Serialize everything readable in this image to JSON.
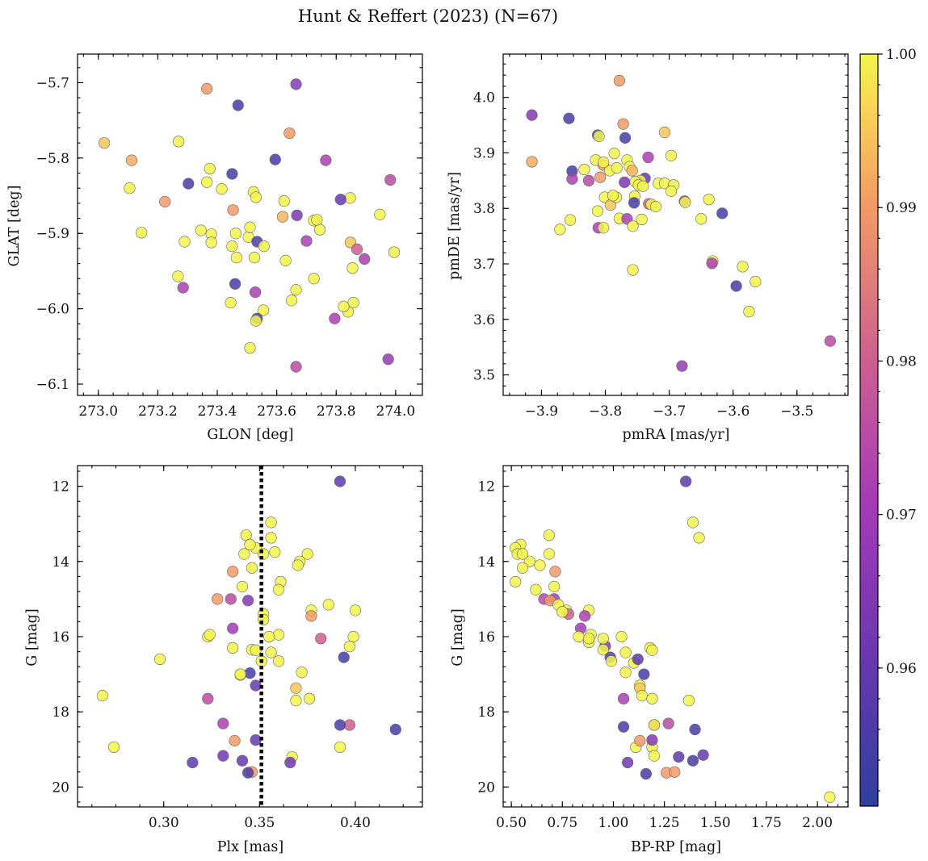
{
  "title": "Hunt & Reffert (2023) (N=67)",
  "colorbar": {
    "vmin": 0.951,
    "vmax": 1.0,
    "ticks": [
      0.96,
      0.97,
      0.98,
      0.99,
      1.0
    ],
    "tick_labels": [
      "0.96",
      "0.97",
      "0.98",
      "0.99",
      "1.00"
    ],
    "colormap": "plasma"
  },
  "chart_data": [
    {
      "type": "scatter",
      "name": "sky",
      "xlabel": "GLON [deg]",
      "ylabel": "GLAT [deg]",
      "xlim": [
        272.93,
        274.09
      ],
      "ylim": [
        -6.115,
        -5.662
      ],
      "y_inverted": false,
      "xticks": [
        273.0,
        273.2,
        273.4,
        273.6,
        273.8,
        274.0
      ],
      "xtick_labels": [
        "273.0",
        "273.2",
        "273.4",
        "273.6",
        "273.8",
        "274.0"
      ],
      "yticks": [
        -5.7,
        -5.8,
        -5.9,
        -6.0,
        -6.1
      ],
      "ytick_labels": [
        "−5.7",
        "−5.8",
        "−5.9",
        "−6.0",
        "−6.1"
      ],
      "x": [
        273.365,
        273.665,
        273.47,
        273.643,
        273.02,
        273.112,
        273.595,
        273.765,
        273.27,
        273.375,
        273.45,
        273.303,
        273.365,
        273.982,
        273.105,
        273.224,
        273.415,
        273.522,
        273.53,
        273.847,
        273.625,
        273.815,
        273.453,
        273.668,
        273.62,
        273.947,
        273.145,
        273.38,
        273.345,
        273.462,
        273.505,
        273.745,
        273.51,
        273.29,
        273.7,
        273.534,
        273.848,
        273.87,
        273.38,
        273.45,
        273.557,
        273.525,
        273.63,
        273.895,
        273.465,
        273.855,
        273.268,
        273.285,
        273.725,
        273.46,
        273.528,
        273.665,
        273.445,
        273.858,
        273.65,
        273.84,
        273.555,
        273.795,
        273.534,
        273.53,
        273.51,
        273.665,
        273.975,
        273.995,
        273.825,
        273.725,
        273.735
      ],
      "y": [
        -5.708,
        -5.702,
        -5.73,
        -5.767,
        -5.78,
        -5.803,
        -5.802,
        -5.803,
        -5.778,
        -5.814,
        -5.821,
        -5.834,
        -5.832,
        -5.829,
        -5.84,
        -5.858,
        -5.841,
        -5.845,
        -5.852,
        -5.853,
        -5.857,
        -5.855,
        -5.869,
        -5.876,
        -5.878,
        -5.875,
        -5.899,
        -5.901,
        -5.896,
        -5.9,
        -5.905,
        -5.895,
        -5.892,
        -5.911,
        -5.91,
        -5.911,
        -5.912,
        -5.921,
        -5.912,
        -5.917,
        -5.917,
        -5.932,
        -5.936,
        -5.934,
        -5.932,
        -5.946,
        -5.957,
        -5.972,
        -5.96,
        -5.967,
        -5.978,
        -5.975,
        -5.992,
        -5.992,
        -5.989,
        -6.004,
        -6.002,
        -6.013,
        -6.013,
        -6.016,
        -6.052,
        -6.077,
        -6.067,
        -5.925,
        -5.997,
        -5.883,
        -5.882
      ],
      "c": [
        0.99,
        0.965,
        0.955,
        0.99,
        0.995,
        0.992,
        0.955,
        0.972,
        1.0,
        1.0,
        0.955,
        0.955,
        1.0,
        0.975,
        1.0,
        0.99,
        1.0,
        1.0,
        1.0,
        1.0,
        1.0,
        0.96,
        0.99,
        0.963,
        0.993,
        1.0,
        1.0,
        1.0,
        1.0,
        1.0,
        1.0,
        1.0,
        1.0,
        1.0,
        0.972,
        0.955,
        0.995,
        0.98,
        1.0,
        1.0,
        1.0,
        1.0,
        1.0,
        0.972,
        1.0,
        1.0,
        1.0,
        0.972,
        1.0,
        0.955,
        0.972,
        1.0,
        1.0,
        1.0,
        1.0,
        1.0,
        1.0,
        0.972,
        0.955,
        1.0,
        1.0,
        0.975,
        0.968,
        1.0,
        1.0,
        1.0,
        1.0
      ]
    },
    {
      "type": "scatter",
      "name": "proper_motion",
      "xlabel": "pmRA [mas/yr]",
      "ylabel": "pmDE [mas/yr]",
      "xlim": [
        -3.96,
        -3.42
      ],
      "ylim": [
        3.463,
        4.078
      ],
      "y_inverted": false,
      "xticks": [
        -3.9,
        -3.8,
        -3.7,
        -3.6,
        -3.5
      ],
      "xtick_labels": [
        "−3.9",
        "−3.8",
        "−3.7",
        "−3.6",
        "−3.5"
      ],
      "yticks": [
        3.5,
        3.6,
        3.7,
        3.8,
        3.9,
        4.0
      ],
      "ytick_labels": [
        "3.5",
        "3.6",
        "3.7",
        "3.8",
        "3.9",
        "4.0"
      ],
      "x": [
        -3.778,
        -3.915,
        -3.857,
        -3.772,
        -3.707,
        -3.915,
        -3.812,
        -3.733,
        -3.81,
        -3.697,
        -3.769,
        -3.852,
        -3.815,
        -3.826,
        -3.786,
        -3.803,
        -3.793,
        -3.782,
        -3.803,
        -3.766,
        -3.762,
        -3.738,
        -3.808,
        -3.77,
        -3.758,
        -3.745,
        -3.753,
        -3.717,
        -3.754,
        -3.748,
        -3.707,
        -3.693,
        -3.801,
        -3.697,
        -3.676,
        -3.755,
        -3.792,
        -3.732,
        -3.728,
        -3.721,
        -3.783,
        -3.788,
        -3.638,
        -3.852,
        -3.675,
        -3.65,
        -3.778,
        -3.766,
        -3.743,
        -3.617,
        -3.811,
        -3.855,
        -3.871,
        -3.803,
        -3.757,
        -3.632,
        -3.585,
        -3.633,
        -3.595,
        -3.565,
        -3.575,
        -3.448,
        -3.68,
        -3.757,
        -3.812,
        -3.741,
        -3.833
      ],
      "y": [
        4.03,
        3.968,
        3.962,
        3.952,
        3.937,
        3.884,
        3.932,
        3.892,
        3.93,
        3.895,
        3.927,
        3.867,
        3.887,
        3.85,
        3.899,
        3.878,
        3.868,
        3.873,
        3.883,
        3.887,
        3.875,
        3.854,
        3.856,
        3.847,
        3.868,
        3.85,
        3.848,
        3.845,
        3.822,
        3.842,
        3.845,
        3.842,
        3.82,
        3.831,
        3.813,
        3.81,
        3.806,
        3.808,
        3.807,
        3.803,
        3.82,
        3.823,
        3.816,
        3.853,
        3.811,
        3.781,
        3.782,
        3.781,
        3.78,
        3.791,
        3.765,
        3.779,
        3.762,
        3.765,
        3.768,
        3.705,
        3.695,
        3.701,
        3.66,
        3.668,
        3.614,
        3.561,
        3.516,
        3.689,
        3.795,
        3.84,
        3.87
      ]
    },
    {
      "type": "scatter",
      "name": "cmd_parallax",
      "xlabel": "Plx [mas]",
      "ylabel": "G [mag]",
      "xlim": [
        0.255,
        0.435
      ],
      "ylim": [
        20.53,
        11.45
      ],
      "y_inverted": true,
      "xticks": [
        0.3,
        0.35,
        0.4
      ],
      "xtick_labels": [
        "0.30",
        "0.35",
        "0.40"
      ],
      "yticks": [
        12,
        14,
        16,
        18,
        20
      ],
      "ytick_labels": [
        "12",
        "14",
        "16",
        "18",
        "20"
      ],
      "vline": 0.351,
      "x": [
        0.392,
        0.356,
        0.348,
        0.343,
        0.356,
        0.345,
        0.342,
        0.352,
        0.358,
        0.375,
        0.371,
        0.37,
        0.346,
        0.336,
        0.361,
        0.36,
        0.341,
        0.352,
        0.377,
        0.328,
        0.335,
        0.344,
        0.386,
        0.4,
        0.377,
        0.352,
        0.336,
        0.36,
        0.323,
        0.324,
        0.355,
        0.382,
        0.399,
        0.336,
        0.346,
        0.356,
        0.397,
        0.348,
        0.394,
        0.351,
        0.34,
        0.36,
        0.372,
        0.298,
        0.345,
        0.348,
        0.369,
        0.34,
        0.268,
        0.376,
        0.369,
        0.323,
        0.397,
        0.392,
        0.421,
        0.331,
        0.274,
        0.337,
        0.392,
        0.348,
        0.367,
        0.331,
        0.315,
        0.341,
        0.366,
        0.346,
        0.344
      ],
      "y": [
        11.87,
        12.96,
        13.64,
        13.3,
        13.37,
        13.55,
        13.8,
        13.8,
        13.75,
        13.8,
        14.0,
        14.1,
        14.17,
        14.27,
        14.54,
        14.75,
        14.67,
        15.4,
        15.3,
        15.0,
        15.0,
        15.04,
        15.15,
        15.3,
        15.45,
        15.55,
        15.78,
        15.95,
        16.0,
        15.95,
        16.0,
        16.05,
        16.0,
        16.3,
        16.35,
        16.42,
        16.26,
        16.36,
        16.55,
        16.65,
        17.02,
        16.65,
        16.95,
        16.6,
        16.97,
        17.3,
        17.37,
        17.0,
        17.57,
        17.65,
        17.7,
        17.65,
        18.35,
        18.35,
        18.47,
        18.31,
        18.94,
        18.77,
        18.94,
        18.75,
        19.2,
        19.17,
        19.35,
        19.3,
        19.35,
        19.6,
        19.62
      ],
      "c": [
        0.958,
        1.0,
        1.0,
        1.0,
        1.0,
        1.0,
        1.0,
        1.0,
        1.0,
        1.0,
        1.0,
        1.0,
        1.0,
        0.99,
        1.0,
        1.0,
        1.0,
        1.0,
        1.0,
        0.99,
        0.975,
        0.965,
        1.0,
        1.0,
        0.99,
        1.0,
        0.97,
        1.0,
        1.0,
        1.0,
        1.0,
        0.98,
        1.0,
        1.0,
        1.0,
        1.0,
        1.0,
        1.0,
        0.955,
        1.0,
        1.0,
        1.0,
        1.0,
        1.0,
        0.955,
        0.96,
        0.995,
        1.0,
        1.0,
        1.0,
        1.0,
        0.975,
        0.98,
        0.955,
        0.955,
        0.972,
        1.0,
        0.99,
        1.0,
        0.96,
        1.0,
        0.962,
        0.958,
        0.96,
        0.962,
        0.99,
        0.955
      ]
    },
    {
      "type": "scatter",
      "name": "cmd_color",
      "xlabel": "BP-RP [mag]",
      "ylabel": "G [mag]",
      "xlim": [
        0.46,
        2.15
      ],
      "ylim": [
        20.53,
        11.45
      ],
      "y_inverted": true,
      "xticks": [
        0.5,
        0.75,
        1.0,
        1.25,
        1.5,
        1.75,
        2.0
      ],
      "xtick_labels": [
        "0.50",
        "0.75",
        "1.00",
        "1.25",
        "1.50",
        "1.75",
        "2.00"
      ],
      "yticks": [
        12,
        14,
        16,
        18,
        20
      ],
      "ytick_labels": [
        "12",
        "14",
        "16",
        "18",
        "20"
      ],
      "x": [
        1.355,
        1.39,
        1.42,
        0.545,
        0.52,
        0.685,
        0.53,
        0.685,
        0.59,
        0.64,
        0.555,
        0.715,
        0.52,
        0.62,
        0.71,
        0.66,
        0.71,
        0.69,
        0.73,
        0.77,
        0.78,
        0.88,
        0.86,
        0.84,
        0.96,
        0.89,
        1.04,
        0.95,
        1.18,
        0.95,
        1.06,
        0.88,
        1.19,
        0.985,
        0.99,
        1.1,
        1.15,
        1.06,
        1.13,
        1.13,
        1.14,
        1.19,
        1.05,
        1.37,
        1.4,
        1.27,
        1.2,
        1.2,
        1.19,
        1.11,
        1.13,
        1.19,
        1.05,
        1.07,
        1.2,
        1.32,
        1.39,
        1.44,
        1.26,
        1.3,
        1.16,
        2.06,
        0.555,
        0.75,
        0.83,
        0.88,
        1.12
      ],
      "y": [
        11.87,
        12.96,
        13.37,
        13.55,
        13.64,
        13.3,
        13.8,
        13.8,
        14.0,
        14.1,
        14.17,
        14.27,
        14.54,
        14.75,
        14.67,
        15.0,
        15.0,
        15.04,
        15.15,
        15.3,
        15.4,
        15.3,
        15.45,
        15.78,
        16.25,
        15.95,
        16.0,
        16.05,
        16.3,
        16.35,
        16.42,
        16.15,
        16.36,
        16.55,
        16.65,
        16.7,
        17.0,
        16.95,
        17.3,
        17.37,
        17.57,
        17.65,
        17.65,
        17.7,
        18.47,
        18.31,
        18.35,
        18.35,
        18.94,
        18.94,
        18.77,
        18.75,
        18.4,
        19.35,
        19.17,
        19.2,
        19.3,
        19.15,
        19.62,
        19.6,
        19.65,
        20.27,
        13.8,
        15.34,
        16.0,
        16.05,
        16.6
      ],
      "c": [
        0.958,
        1.0,
        1.0,
        1.0,
        1.0,
        1.0,
        1.0,
        1.0,
        1.0,
        1.0,
        1.0,
        0.99,
        1.0,
        1.0,
        1.0,
        0.975,
        0.97,
        0.99,
        1.0,
        1.0,
        0.98,
        1.0,
        0.972,
        0.97,
        0.965,
        1.0,
        1.0,
        1.0,
        1.0,
        1.0,
        1.0,
        1.0,
        1.0,
        0.958,
        1.0,
        1.0,
        0.955,
        1.0,
        1.0,
        0.995,
        1.0,
        1.0,
        0.972,
        1.0,
        0.955,
        0.975,
        0.98,
        1.0,
        1.0,
        1.0,
        0.99,
        0.965,
        0.955,
        0.962,
        1.0,
        0.958,
        0.955,
        0.96,
        0.99,
        0.99,
        0.955,
        1.0,
        1.0,
        1.0,
        1.0,
        1.0,
        0.958
      ]
    }
  ]
}
